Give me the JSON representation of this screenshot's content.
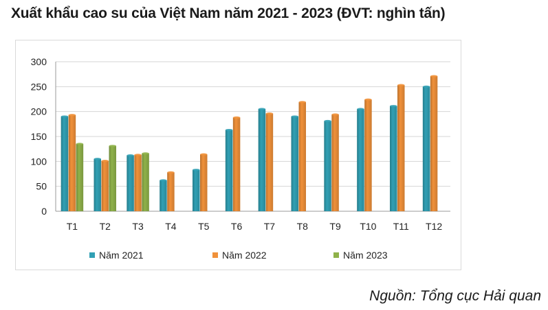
{
  "title": "Xuất khẩu cao su của Việt Nam năm 2021 - 2023 (ĐVT: nghìn tấn)",
  "source": "Nguồn: Tổng cục Hải quan",
  "chart_data": {
    "type": "bar",
    "title": "Xuất khẩu cao su của Việt Nam năm 2021 - 2023 (ĐVT: nghìn tấn)",
    "xlabel": "",
    "ylabel": "",
    "ylim": [
      0,
      300
    ],
    "yticks": [
      0,
      50,
      100,
      150,
      200,
      250,
      300
    ],
    "grid": true,
    "legend_position": "bottom",
    "categories": [
      "T1",
      "T2",
      "T3",
      "T4",
      "T5",
      "T6",
      "T7",
      "T8",
      "T9",
      "T10",
      "T11",
      "T12"
    ],
    "series": [
      {
        "name": "Năm 2021",
        "color": "#31a0b4",
        "values": [
          190,
          105,
          112,
          62,
          83,
          163,
          205,
          190,
          181,
          205,
          211,
          250
        ]
      },
      {
        "name": "Năm 2022",
        "color": "#f0913a",
        "values": [
          193,
          101,
          113,
          78,
          114,
          188,
          196,
          219,
          194,
          224,
          253,
          271
        ]
      },
      {
        "name": "Năm 2023",
        "color": "#8fb24a",
        "values": [
          135,
          131,
          116,
          null,
          null,
          null,
          null,
          null,
          null,
          null,
          null,
          null
        ]
      }
    ]
  }
}
